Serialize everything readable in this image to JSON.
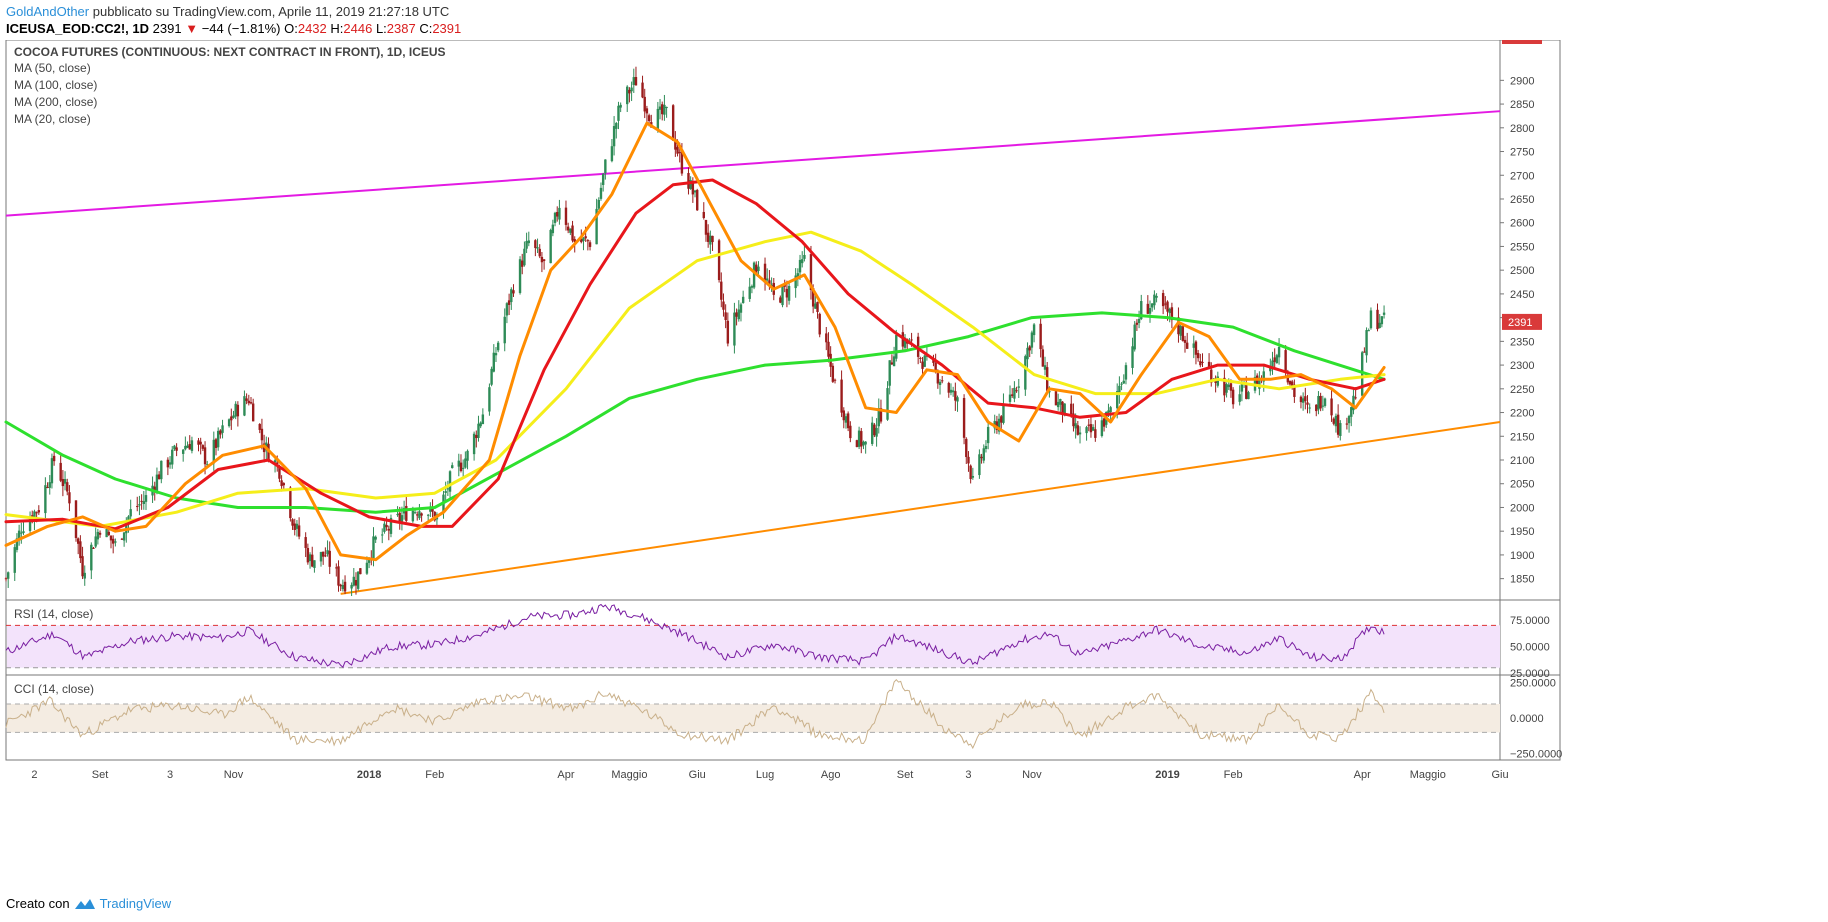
{
  "header": {
    "author": "GoldAndOther",
    "published": "pubblicato su TradingView.com, Aprile 11, 2019 21:27:18 UTC",
    "symbol": "ICEUSA_EOD:CC2!, 1D",
    "price": "2391",
    "change": "−44 (−1.81%)",
    "o_label": "O:",
    "o": "2432",
    "h_label": "H:",
    "h": "2446",
    "l_label": "L:",
    "l": "2387",
    "c_label": "C:",
    "c": "2391"
  },
  "legend": {
    "title": "COCOA FUTURES (CONTINUOUS: NEXT CONTRACT IN FRONT), 1D, ICEUS",
    "ma50": "MA (50, close)",
    "ma100": "MA (100, close)",
    "ma200": "MA (200, close)",
    "ma20": "MA (20, close)"
  },
  "colors": {
    "up": "#2e8b57",
    "down": "#9b1c1c",
    "ma20": "#ff8c00",
    "ma50": "#e8161b",
    "ma100": "#f5ee1a",
    "ma200": "#2ee02e",
    "upper_trend": "#e31ae3",
    "lower_trend": "#ff8c00",
    "rsi": "#7a1fa2",
    "rsi_band": "#f3e3fb",
    "cci": "#c9b08a",
    "cci_band": "#f4ece2",
    "last_badge": "#d93a3a"
  },
  "chart_data": {
    "type": "candlestick",
    "title": "COCOA FUTURES (CONTINUOUS: NEXT CONTRACT IN FRONT), 1D, ICEUS",
    "y_axis": {
      "ylim": [
        1805,
        2985
      ],
      "ticks": [
        1850,
        1900,
        1950,
        2000,
        2050,
        2100,
        2150,
        2200,
        2250,
        2300,
        2350,
        2400,
        2450,
        2500,
        2550,
        2600,
        2650,
        2700,
        2750,
        2800,
        2850,
        2900
      ],
      "position": "right"
    },
    "x_axis": {
      "ticks": [
        {
          "label": "2",
          "date": "2017-08-02"
        },
        {
          "label": "Set",
          "date": "2017-09-01"
        },
        {
          "label": "3",
          "date": "2017-10-03"
        },
        {
          "label": "Nov",
          "date": "2017-11-01"
        },
        {
          "label": "2018",
          "date": "2018-01-02"
        },
        {
          "label": "Feb",
          "date": "2018-02-01"
        },
        {
          "label": "Apr",
          "date": "2018-04-02"
        },
        {
          "label": "Maggio",
          "date": "2018-05-01"
        },
        {
          "label": "Giu",
          "date": "2018-06-01"
        },
        {
          "label": "Lug",
          "date": "2018-07-02"
        },
        {
          "label": "Ago",
          "date": "2018-08-01"
        },
        {
          "label": "Set",
          "date": "2018-09-04"
        },
        {
          "label": "3",
          "date": "2018-10-03"
        },
        {
          "label": "Nov",
          "date": "2018-11-01"
        },
        {
          "label": "2019",
          "date": "2019-01-02"
        },
        {
          "label": "Feb",
          "date": "2019-02-01"
        },
        {
          "label": "Apr",
          "date": "2019-04-01"
        },
        {
          "label": "Maggio",
          "date": "2019-05-01"
        },
        {
          "label": "Giu",
          "date": "2019-06-03"
        }
      ]
    },
    "price_path": [
      [
        "2017-07-20",
        1850
      ],
      [
        "2017-07-27",
        1960
      ],
      [
        "2017-08-04",
        2000
      ],
      [
        "2017-08-11",
        2100
      ],
      [
        "2017-08-18",
        2020
      ],
      [
        "2017-08-24",
        1870
      ],
      [
        "2017-09-01",
        1960
      ],
      [
        "2017-09-08",
        1920
      ],
      [
        "2017-09-15",
        1990
      ],
      [
        "2017-09-22",
        2020
      ],
      [
        "2017-09-29",
        2080
      ],
      [
        "2017-10-06",
        2120
      ],
      [
        "2017-10-13",
        2140
      ],
      [
        "2017-10-20",
        2100
      ],
      [
        "2017-10-27",
        2160
      ],
      [
        "2017-11-03",
        2210
      ],
      [
        "2017-11-08",
        2230
      ],
      [
        "2017-11-15",
        2130
      ],
      [
        "2017-11-22",
        2080
      ],
      [
        "2017-11-29",
        1960
      ],
      [
        "2017-12-06",
        1890
      ],
      [
        "2017-12-13",
        1900
      ],
      [
        "2017-12-20",
        1840
      ],
      [
        "2017-12-27",
        1850
      ],
      [
        "2018-01-05",
        1930
      ],
      [
        "2018-01-12",
        1960
      ],
      [
        "2018-01-19",
        1990
      ],
      [
        "2018-01-26",
        2000
      ],
      [
        "2018-02-02",
        1980
      ],
      [
        "2018-02-09",
        2070
      ],
      [
        "2018-02-16",
        2110
      ],
      [
        "2018-02-23",
        2200
      ],
      [
        "2018-03-02",
        2350
      ],
      [
        "2018-03-09",
        2470
      ],
      [
        "2018-03-16",
        2560
      ],
      [
        "2018-03-23",
        2510
      ],
      [
        "2018-03-30",
        2640
      ],
      [
        "2018-04-06",
        2560
      ],
      [
        "2018-04-13",
        2560
      ],
      [
        "2018-04-20",
        2720
      ],
      [
        "2018-04-27",
        2850
      ],
      [
        "2018-05-04",
        2900
      ],
      [
        "2018-05-11",
        2820
      ],
      [
        "2018-05-18",
        2830
      ],
      [
        "2018-05-25",
        2720
      ],
      [
        "2018-06-01",
        2640
      ],
      [
        "2018-06-08",
        2540
      ],
      [
        "2018-06-15",
        2360
      ],
      [
        "2018-06-22",
        2440
      ],
      [
        "2018-06-29",
        2520
      ],
      [
        "2018-07-06",
        2440
      ],
      [
        "2018-07-13",
        2460
      ],
      [
        "2018-07-20",
        2520
      ],
      [
        "2018-07-27",
        2380
      ],
      [
        "2018-08-03",
        2260
      ],
      [
        "2018-08-10",
        2160
      ],
      [
        "2018-08-17",
        2130
      ],
      [
        "2018-08-24",
        2200
      ],
      [
        "2018-08-31",
        2360
      ],
      [
        "2018-09-07",
        2340
      ],
      [
        "2018-09-14",
        2300
      ],
      [
        "2018-09-21",
        2270
      ],
      [
        "2018-09-28",
        2220
      ],
      [
        "2018-10-05",
        2050
      ],
      [
        "2018-10-12",
        2150
      ],
      [
        "2018-10-19",
        2200
      ],
      [
        "2018-10-26",
        2270
      ],
      [
        "2018-11-02",
        2380
      ],
      [
        "2018-11-09",
        2240
      ],
      [
        "2018-11-16",
        2200
      ],
      [
        "2018-11-23",
        2150
      ],
      [
        "2018-11-30",
        2160
      ],
      [
        "2018-12-07",
        2200
      ],
      [
        "2018-12-14",
        2300
      ],
      [
        "2018-12-21",
        2420
      ],
      [
        "2018-12-28",
        2430
      ],
      [
        "2019-01-04",
        2400
      ],
      [
        "2019-01-11",
        2350
      ],
      [
        "2019-01-18",
        2300
      ],
      [
        "2019-01-25",
        2270
      ],
      [
        "2019-02-01",
        2230
      ],
      [
        "2019-02-08",
        2250
      ],
      [
        "2019-02-15",
        2280
      ],
      [
        "2019-02-22",
        2340
      ],
      [
        "2019-03-01",
        2240
      ],
      [
        "2019-03-08",
        2200
      ],
      [
        "2019-03-15",
        2240
      ],
      [
        "2019-03-22",
        2160
      ],
      [
        "2019-03-29",
        2240
      ],
      [
        "2019-04-05",
        2400
      ],
      [
        "2019-04-11",
        2391
      ]
    ],
    "ma20": [
      [
        "2017-07-20",
        1920
      ],
      [
        "2017-08-08",
        1960
      ],
      [
        "2017-08-24",
        1980
      ],
      [
        "2017-09-08",
        1950
      ],
      [
        "2017-09-22",
        1960
      ],
      [
        "2017-10-10",
        2050
      ],
      [
        "2017-10-27",
        2110
      ],
      [
        "2017-11-15",
        2130
      ],
      [
        "2017-12-04",
        2040
      ],
      [
        "2017-12-20",
        1900
      ],
      [
        "2018-01-05",
        1890
      ],
      [
        "2018-01-19",
        1940
      ],
      [
        "2018-02-05",
        1990
      ],
      [
        "2018-02-26",
        2100
      ],
      [
        "2018-03-12",
        2320
      ],
      [
        "2018-03-26",
        2500
      ],
      [
        "2018-04-09",
        2570
      ],
      [
        "2018-04-23",
        2660
      ],
      [
        "2018-05-09",
        2810
      ],
      [
        "2018-05-23",
        2770
      ],
      [
        "2018-06-07",
        2640
      ],
      [
        "2018-06-21",
        2520
      ],
      [
        "2018-07-06",
        2460
      ],
      [
        "2018-07-20",
        2490
      ],
      [
        "2018-08-03",
        2380
      ],
      [
        "2018-08-17",
        2210
      ],
      [
        "2018-08-31",
        2200
      ],
      [
        "2018-09-14",
        2290
      ],
      [
        "2018-09-28",
        2280
      ],
      [
        "2018-10-12",
        2180
      ],
      [
        "2018-10-26",
        2140
      ],
      [
        "2018-11-09",
        2250
      ],
      [
        "2018-11-23",
        2240
      ],
      [
        "2018-12-07",
        2180
      ],
      [
        "2018-12-21",
        2280
      ],
      [
        "2019-01-07",
        2390
      ],
      [
        "2019-01-21",
        2360
      ],
      [
        "2019-02-04",
        2270
      ],
      [
        "2019-02-18",
        2270
      ],
      [
        "2019-03-04",
        2280
      ],
      [
        "2019-03-18",
        2250
      ],
      [
        "2019-03-29",
        2210
      ],
      [
        "2019-04-11",
        2295
      ]
    ],
    "ma50": [
      [
        "2017-07-20",
        1970
      ],
      [
        "2017-08-15",
        1975
      ],
      [
        "2017-09-08",
        1955
      ],
      [
        "2017-10-02",
        2000
      ],
      [
        "2017-10-25",
        2080
      ],
      [
        "2017-11-17",
        2100
      ],
      [
        "2017-12-11",
        2030
      ],
      [
        "2018-01-02",
        1980
      ],
      [
        "2018-01-26",
        1960
      ],
      [
        "2018-02-09",
        1960
      ],
      [
        "2018-03-02",
        2060
      ],
      [
        "2018-03-23",
        2290
      ],
      [
        "2018-04-13",
        2470
      ],
      [
        "2018-05-04",
        2620
      ],
      [
        "2018-05-21",
        2680
      ],
      [
        "2018-06-08",
        2690
      ],
      [
        "2018-06-28",
        2640
      ],
      [
        "2018-07-19",
        2560
      ],
      [
        "2018-08-09",
        2450
      ],
      [
        "2018-08-30",
        2370
      ],
      [
        "2018-09-21",
        2300
      ],
      [
        "2018-10-12",
        2220
      ],
      [
        "2018-11-02",
        2210
      ],
      [
        "2018-11-23",
        2190
      ],
      [
        "2018-12-14",
        2200
      ],
      [
        "2019-01-04",
        2270
      ],
      [
        "2019-01-25",
        2300
      ],
      [
        "2019-02-15",
        2300
      ],
      [
        "2019-03-08",
        2270
      ],
      [
        "2019-03-29",
        2250
      ],
      [
        "2019-04-11",
        2270
      ]
    ],
    "ma100": [
      [
        "2017-07-20",
        1985
      ],
      [
        "2017-09-01",
        1960
      ],
      [
        "2017-10-06",
        1990
      ],
      [
        "2017-11-03",
        2030
      ],
      [
        "2017-12-04",
        2040
      ],
      [
        "2018-01-05",
        2020
      ],
      [
        "2018-02-01",
        2030
      ],
      [
        "2018-03-01",
        2100
      ],
      [
        "2018-04-02",
        2250
      ],
      [
        "2018-05-01",
        2420
      ],
      [
        "2018-06-01",
        2520
      ],
      [
        "2018-07-02",
        2560
      ],
      [
        "2018-07-23",
        2580
      ],
      [
        "2018-08-15",
        2540
      ],
      [
        "2018-09-07",
        2470
      ],
      [
        "2018-10-05",
        2380
      ],
      [
        "2018-11-02",
        2280
      ],
      [
        "2018-11-30",
        2240
      ],
      [
        "2018-12-28",
        2240
      ],
      [
        "2019-01-25",
        2270
      ],
      [
        "2019-02-22",
        2250
      ],
      [
        "2019-03-22",
        2270
      ],
      [
        "2019-04-11",
        2280
      ]
    ],
    "ma200": [
      [
        "2017-07-20",
        2180
      ],
      [
        "2017-08-15",
        2110
      ],
      [
        "2017-09-08",
        2060
      ],
      [
        "2017-10-06",
        2020
      ],
      [
        "2017-11-03",
        2000
      ],
      [
        "2017-12-04",
        2000
      ],
      [
        "2018-01-05",
        1990
      ],
      [
        "2018-02-01",
        2000
      ],
      [
        "2018-03-01",
        2070
      ],
      [
        "2018-04-02",
        2150
      ],
      [
        "2018-05-01",
        2230
      ],
      [
        "2018-06-01",
        2270
      ],
      [
        "2018-07-02",
        2300
      ],
      [
        "2018-08-01",
        2310
      ],
      [
        "2018-09-04",
        2330
      ],
      [
        "2018-10-03",
        2360
      ],
      [
        "2018-11-01",
        2400
      ],
      [
        "2018-12-03",
        2410
      ],
      [
        "2019-01-02",
        2400
      ],
      [
        "2019-02-01",
        2380
      ],
      [
        "2019-03-01",
        2330
      ],
      [
        "2019-04-11",
        2270
      ]
    ],
    "upper_trend": [
      [
        "2017-07-20",
        2615
      ],
      [
        "2019-06-03",
        2835
      ]
    ],
    "lower_trend": [
      [
        "2017-12-20",
        1818
      ],
      [
        "2019-06-03",
        2180
      ]
    ],
    "last_price": 2391,
    "rsi": {
      "label": "RSI (14, close)",
      "ticks": [
        25,
        50,
        75
      ],
      "tick_labels": [
        "25.0000",
        "50.0000",
        "75.0000"
      ],
      "band": [
        30,
        70
      ],
      "ylim": [
        25,
        92
      ],
      "path": [
        [
          "2017-07-20",
          45
        ],
        [
          "2017-08-11",
          62
        ],
        [
          "2017-08-25",
          40
        ],
        [
          "2017-09-15",
          55
        ],
        [
          "2017-10-06",
          60
        ],
        [
          "2017-10-27",
          58
        ],
        [
          "2017-11-08",
          65
        ],
        [
          "2017-11-29",
          40
        ],
        [
          "2017-12-20",
          32
        ],
        [
          "2018-01-12",
          50
        ],
        [
          "2018-02-02",
          52
        ],
        [
          "2018-02-23",
          62
        ],
        [
          "2018-03-16",
          78
        ],
        [
          "2018-04-06",
          80
        ],
        [
          "2018-04-20",
          88
        ],
        [
          "2018-05-04",
          80
        ],
        [
          "2018-05-25",
          62
        ],
        [
          "2018-06-15",
          40
        ],
        [
          "2018-07-06",
          52
        ],
        [
          "2018-07-27",
          40
        ],
        [
          "2018-08-17",
          36
        ],
        [
          "2018-08-31",
          60
        ],
        [
          "2018-09-21",
          45
        ],
        [
          "2018-10-05",
          34
        ],
        [
          "2018-10-26",
          55
        ],
        [
          "2018-11-09",
          62
        ],
        [
          "2018-11-23",
          42
        ],
        [
          "2018-12-14",
          56
        ],
        [
          "2018-12-28",
          66
        ],
        [
          "2019-01-18",
          50
        ],
        [
          "2019-02-08",
          44
        ],
        [
          "2019-02-22",
          58
        ],
        [
          "2019-03-08",
          40
        ],
        [
          "2019-03-22",
          38
        ],
        [
          "2019-04-05",
          70
        ],
        [
          "2019-04-11",
          63
        ]
      ]
    },
    "cci": {
      "label": "CCI (14, close)",
      "ticks": [
        -250,
        0,
        250
      ],
      "tick_labels": [
        "−250.0000",
        "0.0000",
        "250.0000"
      ],
      "band": [
        -100,
        100
      ],
      "ylim": [
        -280,
        290
      ],
      "path": [
        [
          "2017-07-20",
          -40
        ],
        [
          "2017-08-09",
          120
        ],
        [
          "2017-08-24",
          -120
        ],
        [
          "2017-09-15",
          60
        ],
        [
          "2017-10-06",
          90
        ],
        [
          "2017-10-27",
          20
        ],
        [
          "2017-11-08",
          150
        ],
        [
          "2017-11-29",
          -150
        ],
        [
          "2017-12-20",
          -160
        ],
        [
          "2018-01-12",
          80
        ],
        [
          "2018-02-02",
          -20
        ],
        [
          "2018-02-23",
          130
        ],
        [
          "2018-03-16",
          150
        ],
        [
          "2018-04-06",
          60
        ],
        [
          "2018-04-20",
          180
        ],
        [
          "2018-05-04",
          80
        ],
        [
          "2018-05-25",
          -110
        ],
        [
          "2018-06-15",
          -160
        ],
        [
          "2018-07-06",
          90
        ],
        [
          "2018-07-27",
          -120
        ],
        [
          "2018-08-17",
          -150
        ],
        [
          "2018-08-31",
          270
        ],
        [
          "2018-09-21",
          -60
        ],
        [
          "2018-10-05",
          -180
        ],
        [
          "2018-10-26",
          90
        ],
        [
          "2018-11-09",
          120
        ],
        [
          "2018-11-23",
          -130
        ],
        [
          "2018-12-14",
          80
        ],
        [
          "2018-12-28",
          160
        ],
        [
          "2019-01-18",
          -120
        ],
        [
          "2019-02-08",
          -150
        ],
        [
          "2019-02-22",
          90
        ],
        [
          "2019-03-08",
          -110
        ],
        [
          "2019-03-22",
          -140
        ],
        [
          "2019-04-05",
          170
        ],
        [
          "2019-04-11",
          60
        ]
      ]
    }
  }
}
